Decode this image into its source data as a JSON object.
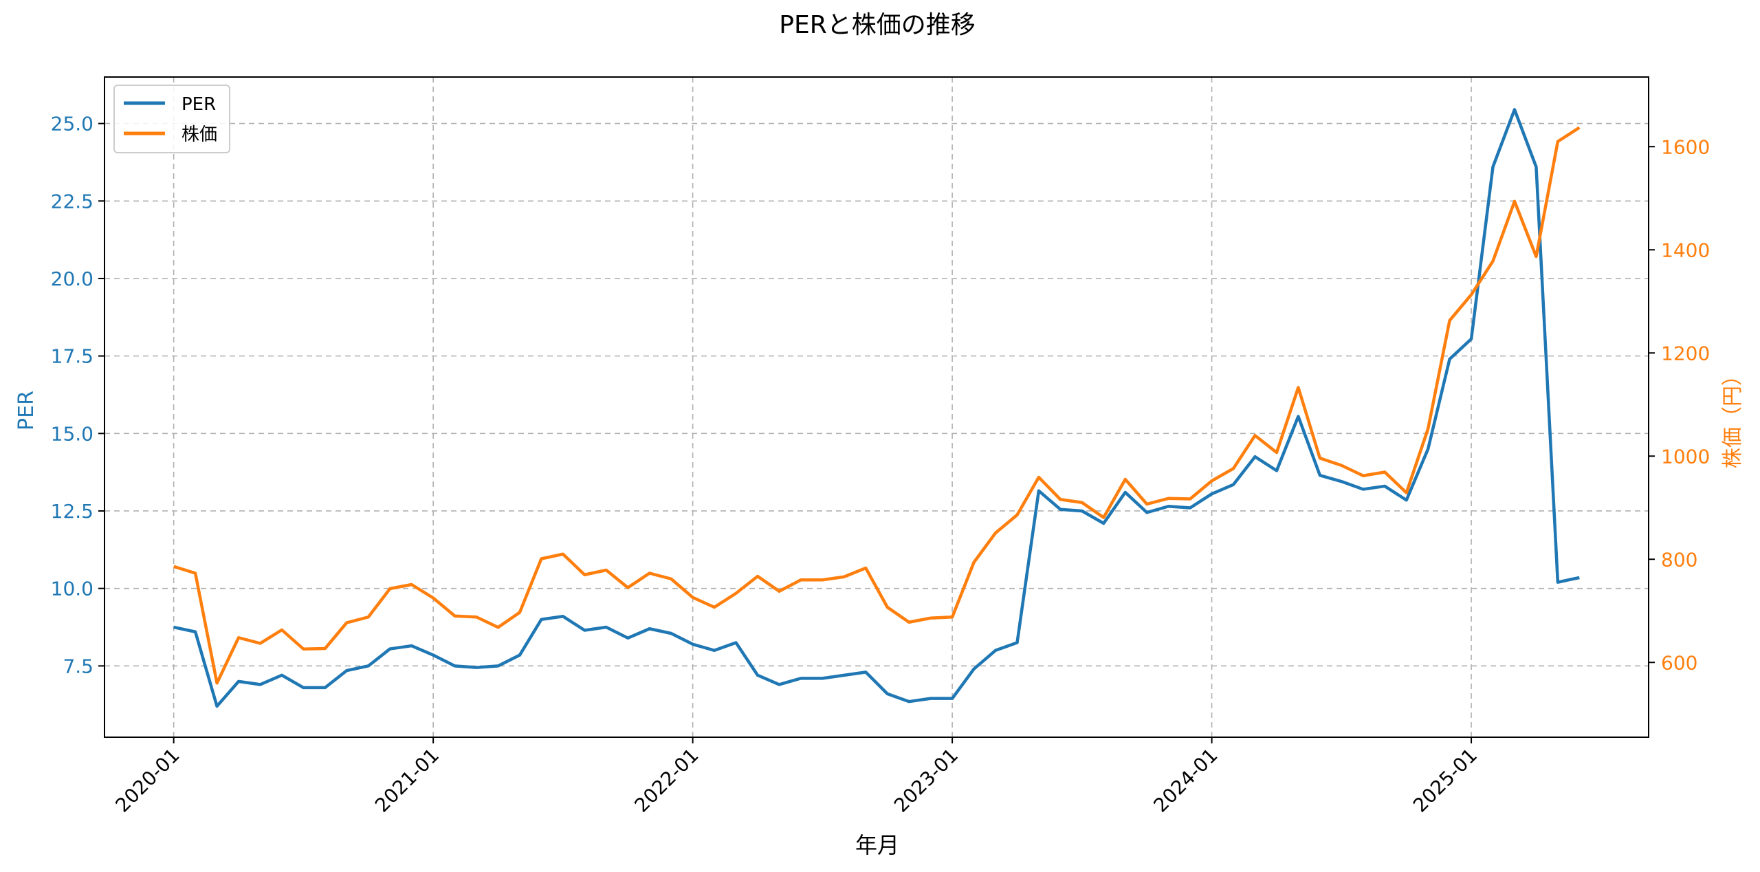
{
  "chart_data": {
    "type": "line",
    "title": "PERと株価の推移",
    "xlabel": "年月",
    "ylabel_left": "PER",
    "ylabel_right": "株価（円）",
    "x_tick_labels": [
      "2020-01",
      "2021-01",
      "2022-01",
      "2023-01",
      "2024-01",
      "2025-01"
    ],
    "x_tick_months": [
      0,
      12,
      24,
      36,
      48,
      60
    ],
    "y_left_ticks": [
      "7.5",
      "10.0",
      "12.5",
      "15.0",
      "17.5",
      "20.0",
      "22.5",
      "25.0"
    ],
    "y_left_tick_values": [
      7.5,
      10.0,
      12.5,
      15.0,
      17.5,
      20.0,
      22.5,
      25.0
    ],
    "y_right_ticks": [
      "600",
      "800",
      "1000",
      "1200",
      "1400",
      "1600"
    ],
    "y_right_tick_values": [
      600,
      800,
      1000,
      1200,
      1400,
      1600
    ],
    "ylim_left": [
      5.2,
      26.5
    ],
    "ylim_right": [
      455,
      1735
    ],
    "xlim_months": [
      -3.2,
      68.2
    ],
    "grid": true,
    "legend_position": "top-left",
    "colors": {
      "per": "#1f77b4",
      "price": "#ff7f0e",
      "axis": "#000000",
      "grid": "#b0b0b0"
    },
    "legend": [
      {
        "label": "PER",
        "color": "#1f77b4"
      },
      {
        "label": "株価",
        "color": "#ff7f0e"
      }
    ],
    "x_months": [
      0,
      1,
      2,
      3,
      4,
      5,
      6,
      7,
      8,
      9,
      10,
      11,
      12,
      13,
      14,
      15,
      16,
      17,
      18,
      19,
      20,
      21,
      22,
      23,
      24,
      25,
      26,
      27,
      28,
      29,
      30,
      31,
      32,
      33,
      34,
      35,
      36,
      37,
      38,
      39,
      40,
      41,
      42,
      43,
      44,
      45,
      46,
      47,
      48,
      49,
      50,
      51,
      52,
      53,
      54,
      55,
      56,
      57,
      58,
      59,
      60,
      61,
      62,
      63,
      64,
      65
    ],
    "series": [
      {
        "name": "PER",
        "axis": "left",
        "color": "#1f77b4",
        "values": [
          8.75,
          8.6,
          6.2,
          7.0,
          6.9,
          7.2,
          6.8,
          6.8,
          7.35,
          7.5,
          8.05,
          8.15,
          7.85,
          7.5,
          7.45,
          7.5,
          7.85,
          9.0,
          9.1,
          8.65,
          8.75,
          8.4,
          8.7,
          8.55,
          8.2,
          8.0,
          8.25,
          7.2,
          6.9,
          7.1,
          7.1,
          7.2,
          7.3,
          6.6,
          6.35,
          6.45,
          6.45,
          7.4,
          8.0,
          8.25,
          13.15,
          12.55,
          12.5,
          12.1,
          13.1,
          12.45,
          12.65,
          12.6,
          13.05,
          13.35,
          14.25,
          13.8,
          15.55,
          13.65,
          13.45,
          13.2,
          13.3,
          12.85,
          14.5,
          17.4,
          18.05,
          23.6,
          25.45,
          23.6,
          10.2,
          10.35
        ]
      },
      {
        "name": "株価",
        "axis": "right",
        "color": "#ff7f0e",
        "values": [
          786,
          773,
          560,
          648,
          637,
          663,
          626,
          627,
          677,
          688,
          743,
          751,
          725,
          690,
          688,
          668,
          697,
          801,
          810,
          770,
          779,
          745,
          773,
          762,
          726,
          707,
          734,
          767,
          738,
          760,
          760,
          766,
          783,
          707,
          678,
          686,
          688,
          794,
          851,
          886,
          959,
          916,
          910,
          881,
          955,
          907,
          918,
          917,
          952,
          976,
          1040,
          1007,
          1133,
          996,
          982,
          962,
          969,
          929,
          1053,
          1263,
          1313,
          1378,
          1494,
          1387,
          1610,
          1637
        ]
      }
    ]
  }
}
